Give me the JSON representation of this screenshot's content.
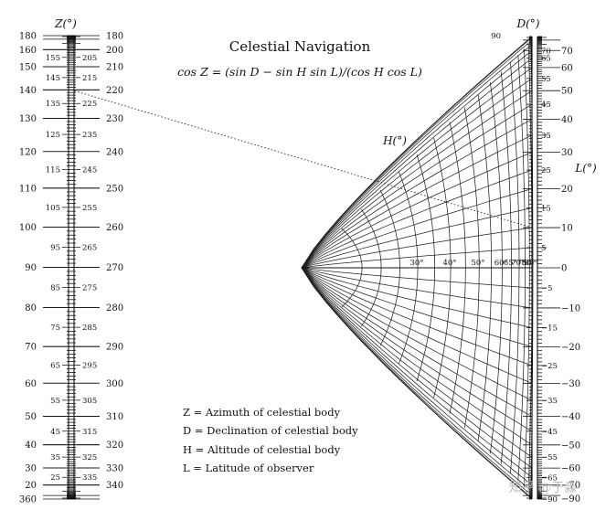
{
  "title": "Celestial Navigation",
  "formula": "cos Z = (sin D − sin H sin L)/(cos H cos L)",
  "axis_labels": {
    "z": "Z(°)",
    "h": "H(°)",
    "d": "D(°)",
    "l": "L(°)"
  },
  "legend": [
    "Z = Azimuth of celestial body",
    "D = Declination of celestial body",
    "H = Altitude of celestial body",
    "L = Latitude of observer"
  ],
  "z_scale": {
    "outer_left": [
      "180",
      "160",
      "150",
      "140",
      "130",
      "120",
      "110",
      "100",
      "90",
      "80",
      "70",
      "60",
      "50",
      "40",
      "30",
      "20",
      "360"
    ],
    "outer_right": [
      "180",
      "200",
      "210",
      "220",
      "230",
      "240",
      "250",
      "260",
      "270",
      "280",
      "290",
      "300",
      "310",
      "320",
      "330",
      "340"
    ],
    "inner_left": [
      "155",
      "145",
      "125",
      "135",
      "115",
      "105",
      "95",
      "85",
      "75",
      "65",
      "55",
      "45",
      "35",
      "25"
    ],
    "inner_right": [
      "205",
      "215",
      "225",
      "235",
      "245",
      "255",
      "265",
      "275",
      "285",
      "295",
      "305",
      "315",
      "325",
      "335"
    ]
  },
  "h_scale": [
    "30",
    "40",
    "50",
    "60",
    "65",
    "70",
    "75",
    "80",
    "85"
  ],
  "d_scale": [
    "90",
    "70",
    "65",
    "60",
    "55",
    "50",
    "45",
    "40",
    "35",
    "30",
    "25",
    "20",
    "15",
    "10",
    "5",
    "0",
    "−5",
    "−10",
    "−15",
    "−20",
    "−25",
    "−30",
    "−35",
    "−40",
    "−45",
    "−50",
    "−55",
    "−60",
    "−65",
    "−70",
    "−90"
  ],
  "l_scale": [
    "60",
    "50",
    "40",
    "30",
    "20",
    "10",
    "0",
    "−10",
    "−20",
    "−30",
    "−40",
    "−50",
    "−60"
  ],
  "example_line": {
    "z": 140,
    "l": 10
  },
  "watermark": "知乎 @于淼"
}
